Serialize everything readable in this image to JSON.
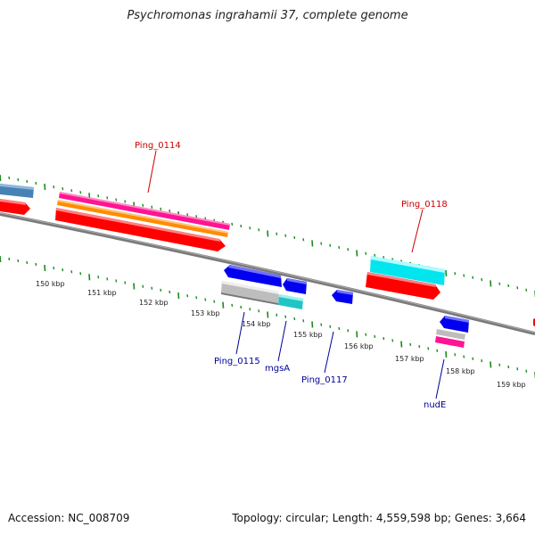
{
  "title": "Psychromonas ingrahamii 37, complete genome",
  "footer": {
    "accession": "Accession: NC_008709",
    "info": "Topology: circular; Length: 4,559,598 bp; Genes: 3,664"
  },
  "scale_labels": [
    "150 kbp",
    "151 kbp",
    "152 kbp",
    "153 kbp",
    "154 kbp",
    "155 kbp",
    "156 kbp",
    "157 kbp",
    "158 kbp",
    "159 kbp"
  ],
  "gene_labels": [
    {
      "text": "Ping_0114",
      "color": "#cc0000"
    },
    {
      "text": "Ping_0118",
      "color": "#cc0000"
    },
    {
      "text": "Ping_0115",
      "color": "#000099"
    },
    {
      "text": "mgsA",
      "color": "#000099"
    },
    {
      "text": "Ping_0117",
      "color": "#000099"
    },
    {
      "text": "nudE",
      "color": "#000099"
    }
  ],
  "colors": {
    "red": "#ff0000",
    "pink": "#ff1493",
    "orange": "#ff8c00",
    "blue": "#0000ee",
    "cyan": "#00e5ee",
    "teal": "#20c5c5",
    "gray": "#bdbdbd",
    "steel": "#4682b4",
    "backbone": "#7a7a7a",
    "tick": "#1a8a1a"
  }
}
